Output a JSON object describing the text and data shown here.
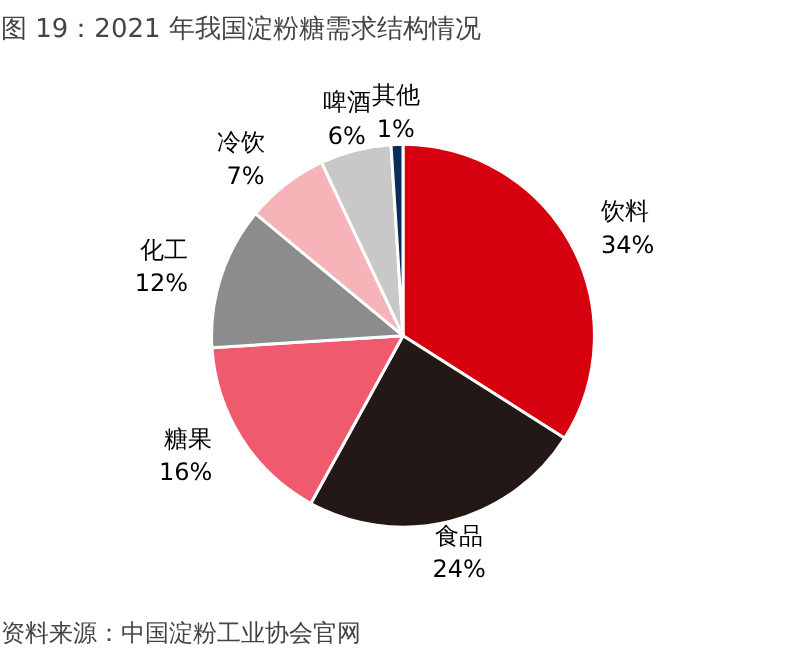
{
  "chart_data": {
    "type": "pie",
    "title": "图 19：2021 年我国淀粉糖需求结构情况",
    "categories": [
      "饮料",
      "食品",
      "糖果",
      "化工",
      "冷饮",
      "啤酒",
      "其他"
    ],
    "values": [
      34,
      24,
      16,
      12,
      7,
      6,
      1
    ],
    "value_labels": [
      "34%",
      "24%",
      "16%",
      "12%",
      "7%",
      "6%",
      "1%"
    ],
    "colors": [
      "#d7000f",
      "#231815",
      "#f05a6e",
      "#8c8c8c",
      "#f6b4b9",
      "#c8c8c8",
      "#0a2d5a"
    ],
    "annotations": [
      "资料来源：中国淀粉工业协会官网"
    ]
  }
}
